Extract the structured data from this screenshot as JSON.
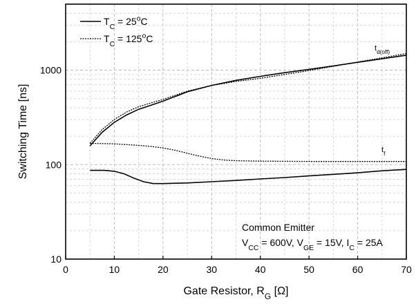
{
  "chart_data": {
    "type": "line",
    "xlabel": "Gate Resistor, R",
    "xlabel_sub": "G",
    "xlabel_unit": " [Ω]",
    "ylabel": "Switching Time [ns]",
    "xlim": [
      0,
      70
    ],
    "ylim": [
      10,
      5000
    ],
    "yscale": "log",
    "grid": true,
    "x_ticks": [
      0,
      10,
      20,
      30,
      40,
      50,
      60,
      70
    ],
    "y_ticks": [
      10,
      100,
      1000
    ],
    "legend_position": "top-left",
    "legend": [
      {
        "prefix": "T",
        "sub": "C",
        "mid": " = 25",
        "sup": "o",
        "suffix": "C",
        "style": "solid"
      },
      {
        "prefix": "T",
        "sub": "C",
        "mid": " = 125",
        "sup": "o",
        "suffix": "C",
        "style": "dotted"
      }
    ],
    "curve_labels": {
      "td_off": {
        "main": "t",
        "sub": "d(off)"
      },
      "tf": {
        "main": "t",
        "sub": "f"
      }
    },
    "annotation": {
      "line1": "Common Emitter",
      "line2": [
        {
          "t": "V"
        },
        {
          "t": "CC",
          "sub": true
        },
        {
          "t": " = 600V, V"
        },
        {
          "t": "GE",
          "sub": true
        },
        {
          "t": " = 15V, I"
        },
        {
          "t": "C",
          "sub": true
        },
        {
          "t": " = 25A"
        }
      ]
    },
    "series": [
      {
        "curve": "td(off)",
        "style": "solid",
        "x": [
          5,
          7.5,
          10,
          12.5,
          15,
          17.5,
          20,
          25,
          30,
          35,
          40,
          45,
          50,
          55,
          60,
          65,
          70
        ],
        "y": [
          158,
          220,
          280,
          335,
          385,
          425,
          470,
          590,
          690,
          780,
          860,
          940,
          1020,
          1110,
          1210,
          1320,
          1440
        ]
      },
      {
        "curve": "td(off)",
        "style": "dotted",
        "x": [
          5,
          7.5,
          10,
          12.5,
          15,
          17.5,
          20,
          25,
          30,
          35,
          40,
          45,
          50,
          55,
          60,
          65,
          70
        ],
        "y": [
          168,
          235,
          300,
          360,
          410,
          450,
          490,
          600,
          690,
          760,
          820,
          900,
          990,
          1100,
          1220,
          1350,
          1500
        ]
      },
      {
        "curve": "tf",
        "style": "solid",
        "x": [
          5,
          8,
          10,
          12,
          14,
          16,
          18,
          20,
          25,
          30,
          35,
          40,
          45,
          50,
          55,
          60,
          65,
          70
        ],
        "y": [
          87,
          87,
          85,
          80,
          72,
          66,
          63,
          63,
          64,
          66,
          68,
          70.5,
          73,
          76,
          79,
          82,
          86,
          89
        ]
      },
      {
        "curve": "tf",
        "style": "dotted",
        "x": [
          5,
          7.5,
          10,
          12.5,
          15,
          17.5,
          20,
          22.5,
          25,
          27.5,
          30,
          32.5,
          35,
          40,
          45,
          50,
          55,
          60,
          65,
          70
        ],
        "y": [
          168,
          167,
          166,
          163,
          160,
          156,
          150,
          142,
          132,
          123,
          116,
          112,
          110,
          109,
          108.5,
          108,
          108,
          108,
          108,
          108
        ]
      }
    ]
  }
}
